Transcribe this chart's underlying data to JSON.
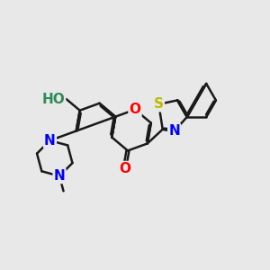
{
  "bg_color": "#e8e8e8",
  "bond_color": "#1a1a1a",
  "bond_width": 1.8,
  "atom_colors": {
    "O": "#ff0000",
    "N": "#0000ff",
    "S": "#bbbb00",
    "HO_color": "#2e8b57",
    "C": "#1a1a1a"
  },
  "font_size_atom": 11,
  "fig_size": [
    3.0,
    3.0
  ],
  "dpi": 100
}
